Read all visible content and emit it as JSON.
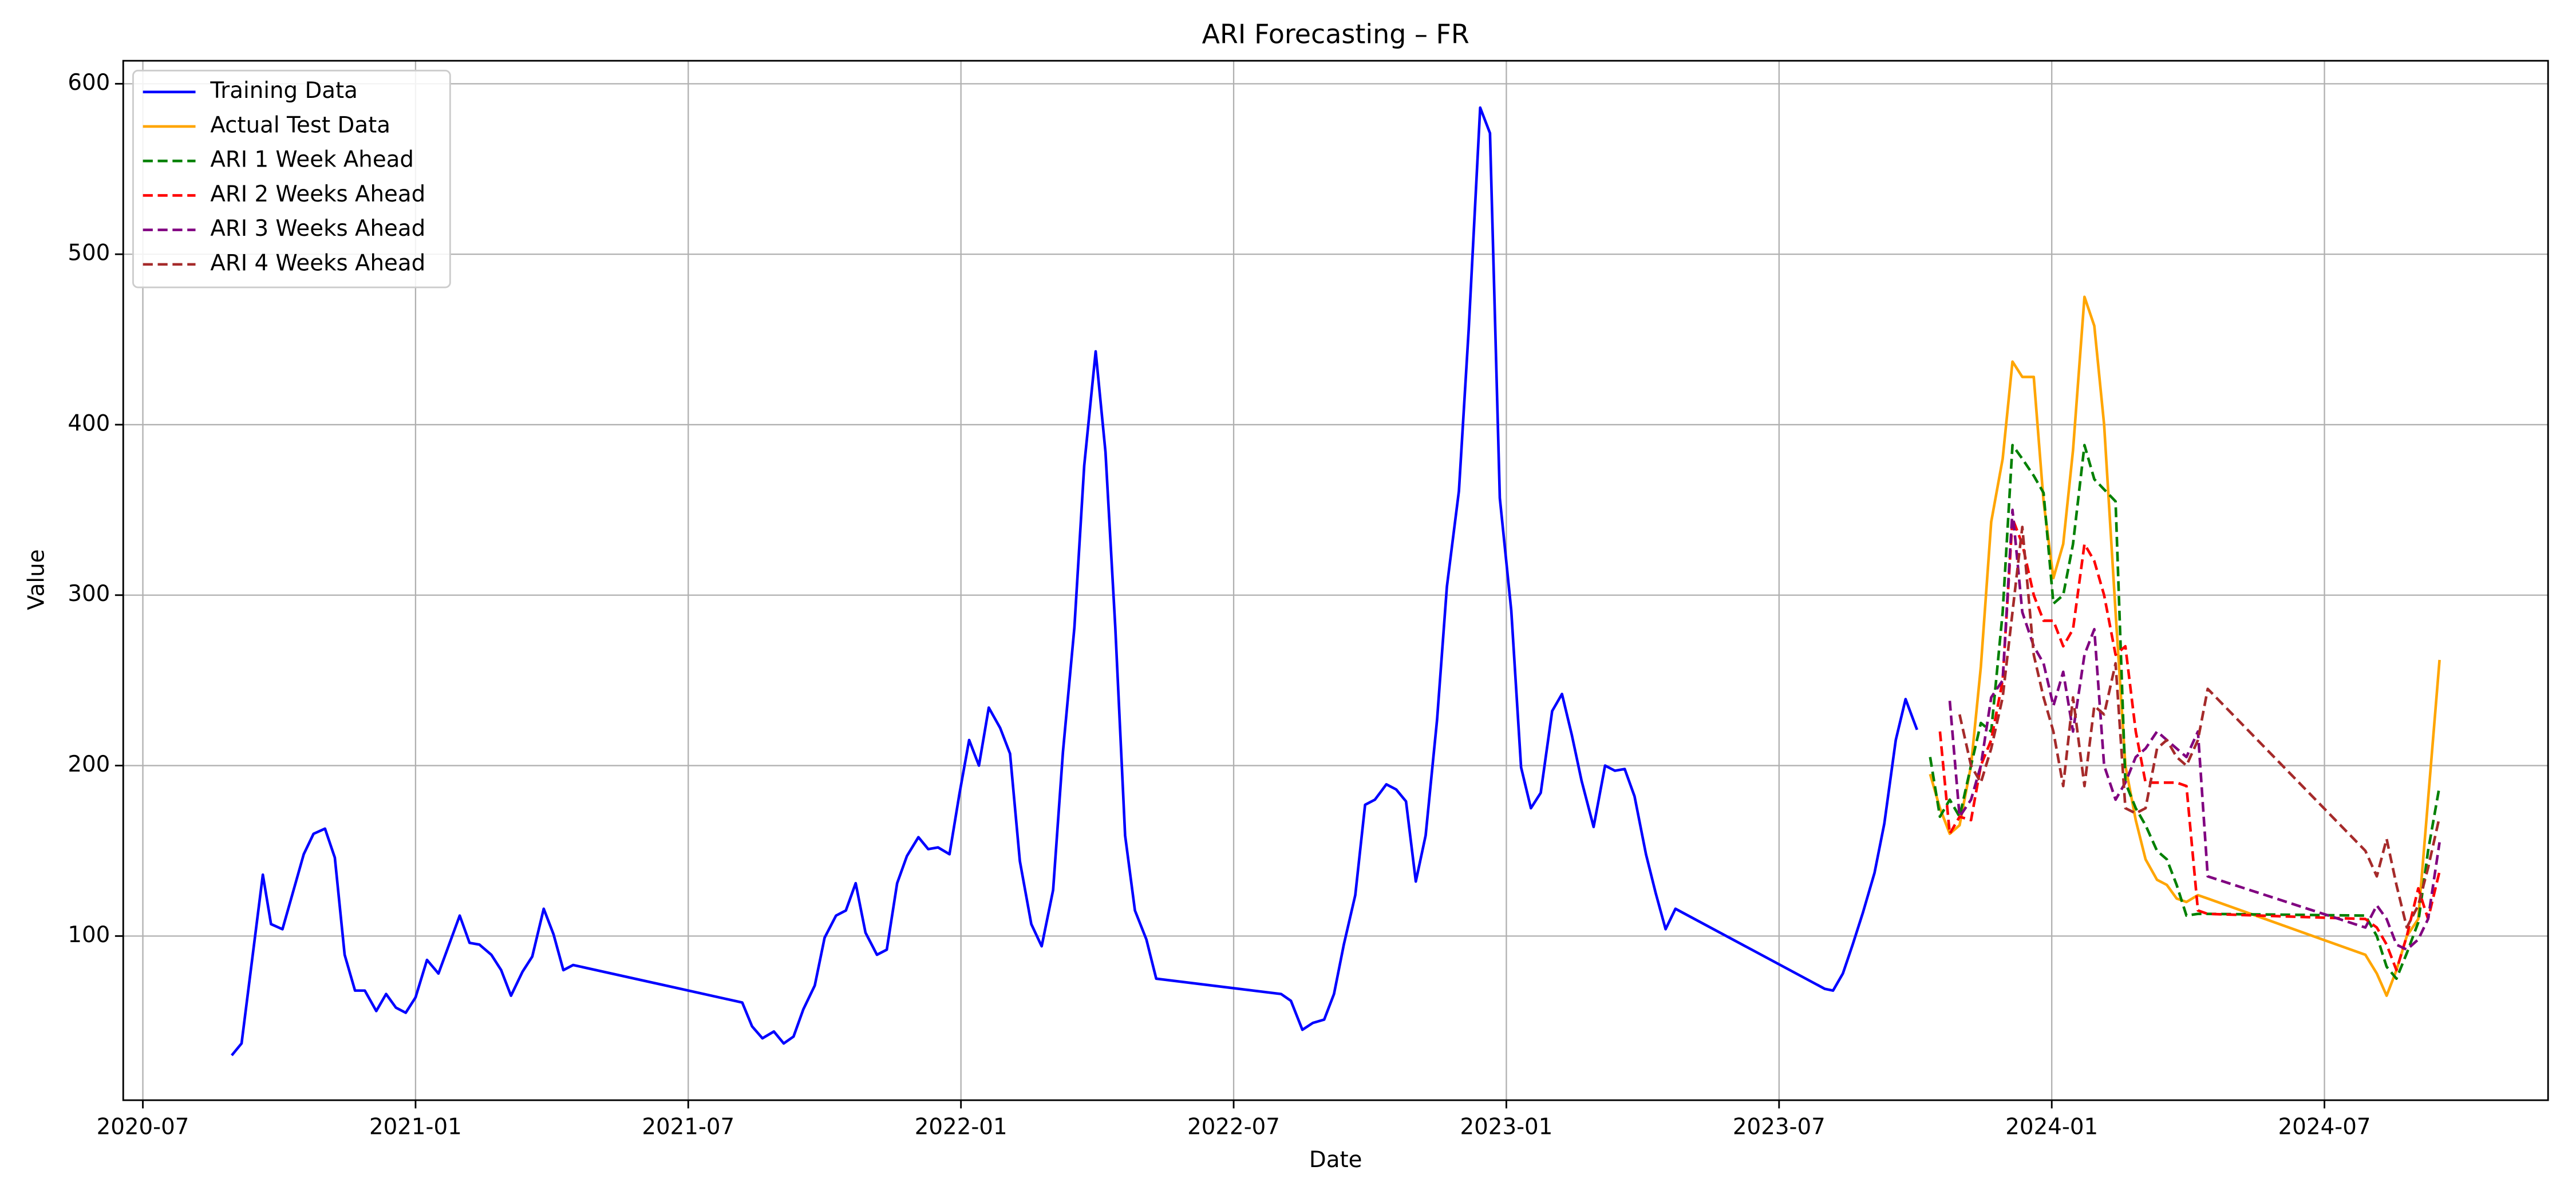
{
  "chart_data": {
    "type": "line",
    "title": "ARI Forecasting – FR",
    "x_label": "Date",
    "y_label": "Value",
    "xlim": [
      2020.464,
      2024.91
    ],
    "ylim": [
      3.7,
      613.5
    ],
    "xticks": [
      {
        "value": 2020.5,
        "label": "2020-07"
      },
      {
        "value": 2021.0,
        "label": "2021-01"
      },
      {
        "value": 2021.5,
        "label": "2021-07"
      },
      {
        "value": 2022.0,
        "label": "2022-01"
      },
      {
        "value": 2022.5,
        "label": "2022-07"
      },
      {
        "value": 2023.0,
        "label": "2023-01"
      },
      {
        "value": 2023.5,
        "label": "2023-07"
      },
      {
        "value": 2024.0,
        "label": "2024-01"
      },
      {
        "value": 2024.5,
        "label": "2024-07"
      }
    ],
    "yticks": [
      100,
      200,
      300,
      400,
      500,
      600
    ],
    "grid": true,
    "legend": "upper left",
    "series": [
      {
        "name": "Training Data",
        "color": "#0000ff",
        "linestyle": "solid",
        "x": [
          2020.663,
          2020.681,
          2020.72,
          2020.735,
          2020.756,
          2020.795,
          2020.813,
          2020.834,
          2020.852,
          2020.87,
          2020.889,
          2020.907,
          2020.928,
          2020.946,
          2020.964,
          2020.982,
          2021.0,
          2021.021,
          2021.042,
          2021.081,
          2021.099,
          2021.117,
          2021.139,
          2021.157,
          2021.175,
          2021.196,
          2021.214,
          2021.235,
          2021.253,
          2021.271,
          2021.289,
          2021.599,
          2021.617,
          2021.636,
          2021.657,
          2021.675,
          2021.693,
          2021.711,
          2021.732,
          2021.75,
          2021.771,
          2021.789,
          2021.807,
          2021.825,
          2021.846,
          2021.864,
          2021.883,
          2021.901,
          2021.922,
          2021.94,
          2021.958,
          2021.979,
          2021.997,
          2022.015,
          2022.033,
          2022.051,
          2022.072,
          2022.09,
          2022.108,
          2022.129,
          2022.148,
          2022.169,
          2022.187,
          2022.208,
          2022.226,
          2022.247,
          2022.265,
          2022.283,
          2022.301,
          2022.319,
          2022.34,
          2022.358,
          2022.587,
          2022.605,
          2022.626,
          2022.645,
          2022.666,
          2022.684,
          2022.702,
          2022.723,
          2022.741,
          2022.759,
          2022.78,
          2022.798,
          2022.816,
          2022.834,
          2022.852,
          2022.873,
          2022.891,
          2022.913,
          2022.931,
          2022.952,
          2022.97,
          2022.988,
          2023.009,
          2023.027,
          2023.045,
          2023.063,
          2023.084,
          2023.102,
          2023.12,
          2023.138,
          2023.16,
          2023.181,
          2023.199,
          2023.217,
          2023.235,
          2023.256,
          2023.274,
          2023.292,
          2023.31,
          2023.584,
          2023.599,
          2023.617,
          2023.635,
          2023.654,
          2023.675,
          2023.693,
          2023.714,
          2023.732,
          2023.753
        ],
        "values": [
          30,
          37,
          136,
          107,
          104,
          148,
          160,
          163,
          146,
          89,
          68,
          68,
          56,
          66,
          58,
          55,
          64,
          86,
          78,
          112,
          96,
          95,
          89,
          80,
          65,
          79,
          88,
          116,
          101,
          80,
          83,
          61,
          47,
          40,
          44,
          37,
          41,
          57,
          71,
          99,
          112,
          115,
          131,
          102,
          89,
          92,
          131,
          147,
          158,
          151,
          152,
          148,
          183,
          215,
          200,
          234,
          222,
          207,
          144,
          107,
          94,
          127,
          208,
          281,
          376,
          443,
          384,
          281,
          159,
          115,
          98,
          75,
          66,
          62,
          45,
          49,
          51,
          66,
          95,
          124,
          177,
          180,
          189,
          186,
          179,
          132,
          159,
          227,
          305,
          361,
          456,
          586,
          571,
          357,
          291,
          199,
          175,
          184,
          232,
          242,
          218,
          191,
          164,
          200,
          197,
          198,
          182,
          148,
          125,
          104,
          116,
          69,
          68,
          78,
          95,
          114,
          137,
          166,
          215,
          239,
          221
        ]
      },
      {
        "name": "Actual Test Data",
        "color": "#ffa500",
        "linestyle": "solid",
        "x": [
          2023.777,
          2023.795,
          2023.813,
          2023.831,
          2023.852,
          2023.87,
          2023.889,
          2023.91,
          2023.928,
          2023.946,
          2023.967,
          2023.985,
          2024.003,
          2024.021,
          2024.039,
          2024.06,
          2024.078,
          2024.096,
          2024.117,
          2024.135,
          2024.154,
          2024.172,
          2024.193,
          2024.211,
          2024.229,
          2024.247,
          2024.268,
          2024.286,
          2024.575,
          2024.596,
          2024.614,
          2024.632,
          2024.651,
          2024.672,
          2024.69,
          2024.711
        ],
        "values": [
          195,
          175,
          160,
          165,
          200,
          258,
          343,
          380,
          437,
          428,
          428,
          355,
          310,
          330,
          385,
          475,
          458,
          400,
          290,
          200,
          168,
          145,
          133,
          130,
          122,
          120,
          124,
          122,
          89,
          78,
          65,
          80,
          100,
          110,
          180,
          262
        ]
      },
      {
        "name": "ARI 1 Week Ahead",
        "color": "#008000",
        "linestyle": "dashed",
        "x": [
          2023.777,
          2023.795,
          2023.813,
          2023.831,
          2023.852,
          2023.87,
          2023.889,
          2023.91,
          2023.928,
          2023.946,
          2023.967,
          2023.985,
          2024.003,
          2024.021,
          2024.039,
          2024.06,
          2024.078,
          2024.096,
          2024.117,
          2024.135,
          2024.154,
          2024.172,
          2024.193,
          2024.211,
          2024.229,
          2024.247,
          2024.268,
          2024.286,
          2024.575,
          2024.596,
          2024.614,
          2024.632,
          2024.651,
          2024.672,
          2024.69,
          2024.711
        ],
        "values": [
          205,
          170,
          180,
          170,
          200,
          225,
          220,
          290,
          388,
          380,
          370,
          360,
          295,
          300,
          330,
          388,
          368,
          362,
          355,
          190,
          175,
          165,
          150,
          145,
          130,
          112,
          113,
          113,
          112,
          100,
          82,
          75,
          90,
          108,
          150,
          188
        ]
      },
      {
        "name": "ARI 2 Weeks Ahead",
        "color": "#ff0000",
        "linestyle": "dashed",
        "x": [
          2023.777,
          2023.795,
          2023.813,
          2023.831,
          2023.852,
          2023.87,
          2023.889,
          2023.91,
          2023.928,
          2023.946,
          2023.967,
          2023.985,
          2024.003,
          2024.021,
          2024.039,
          2024.06,
          2024.078,
          2024.096,
          2024.117,
          2024.135,
          2024.154,
          2024.172,
          2024.193,
          2024.211,
          2024.229,
          2024.247,
          2024.268,
          2024.286,
          2024.575,
          2024.596,
          2024.614,
          2024.632,
          2024.651,
          2024.672,
          2024.69,
          2024.711
        ],
        "values": [
          null,
          220,
          160,
          170,
          168,
          200,
          215,
          250,
          345,
          330,
          300,
          285,
          285,
          270,
          280,
          330,
          320,
          300,
          265,
          270,
          220,
          190,
          190,
          190,
          190,
          188,
          115,
          113,
          110,
          105,
          95,
          80,
          100,
          128,
          110,
          138
        ]
      },
      {
        "name": "ARI 3 Weeks Ahead",
        "color": "#800080",
        "linestyle": "dashed",
        "x": [
          2023.777,
          2023.795,
          2023.813,
          2023.831,
          2023.852,
          2023.87,
          2023.889,
          2023.91,
          2023.928,
          2023.946,
          2023.967,
          2023.985,
          2024.003,
          2024.021,
          2024.039,
          2024.06,
          2024.078,
          2024.096,
          2024.117,
          2024.135,
          2024.154,
          2024.172,
          2024.193,
          2024.211,
          2024.229,
          2024.247,
          2024.268,
          2024.286,
          2024.575,
          2024.596,
          2024.614,
          2024.632,
          2024.651,
          2024.672,
          2024.69,
          2024.711
        ],
        "values": [
          null,
          null,
          238,
          170,
          180,
          200,
          240,
          250,
          350,
          290,
          270,
          260,
          235,
          255,
          220,
          265,
          280,
          200,
          180,
          190,
          205,
          210,
          220,
          215,
          210,
          205,
          220,
          135,
          105,
          118,
          110,
          95,
          92,
          98,
          110,
          155
        ]
      },
      {
        "name": "ARI 4 Weeks Ahead",
        "color": "#a52a2a",
        "linestyle": "dashed",
        "x": [
          2023.777,
          2023.795,
          2023.813,
          2023.831,
          2023.852,
          2023.87,
          2023.889,
          2023.91,
          2023.928,
          2023.946,
          2023.967,
          2023.985,
          2024.003,
          2024.021,
          2024.039,
          2024.06,
          2024.078,
          2024.096,
          2024.117,
          2024.135,
          2024.154,
          2024.172,
          2024.193,
          2024.211,
          2024.229,
          2024.247,
          2024.268,
          2024.286,
          2024.575,
          2024.596,
          2024.614,
          2024.632,
          2024.651,
          2024.672,
          2024.69,
          2024.711
        ],
        "values": [
          null,
          null,
          null,
          230,
          200,
          190,
          210,
          240,
          290,
          340,
          265,
          240,
          220,
          188,
          240,
          188,
          235,
          230,
          260,
          175,
          172,
          175,
          210,
          215,
          205,
          200,
          215,
          245,
          150,
          135,
          157,
          130,
          105,
          118,
          140,
          170
        ]
      }
    ]
  }
}
